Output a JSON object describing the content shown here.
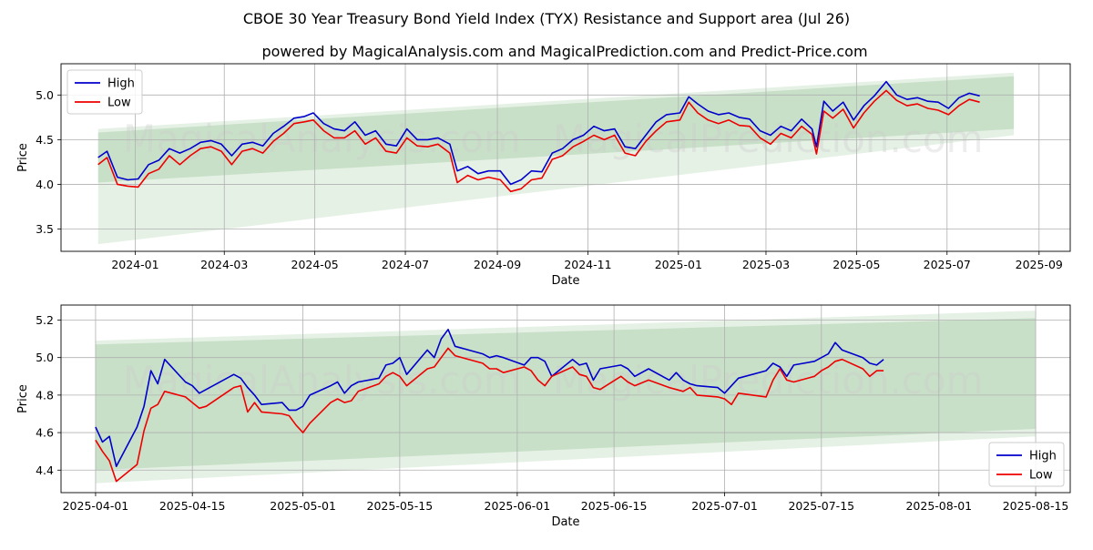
{
  "title": "CBOE 30 Year Treasury Bond Yield Index (TYX) Resistance and Support area (Jul 26)",
  "subtitle": "powered by MagicalAnalysis.com and MagicalPrediction.com and Predict-Price.com",
  "watermarks": [
    "MagicalAnalysis.com",
    "MagicalPrediction.com"
  ],
  "colors": {
    "high": "#0000cc",
    "low": "#ee0000",
    "band": "#2e8b2e"
  },
  "chart_data": [
    {
      "type": "line",
      "xlabel": "Date",
      "ylabel": "Price",
      "xlim": [
        "2023-11-12",
        "2025-09-22"
      ],
      "ylim": [
        3.25,
        5.35
      ],
      "x_ticks": [
        "2024-01-01",
        "2024-03-01",
        "2024-05-01",
        "2024-07-01",
        "2024-09-01",
        "2024-11-01",
        "2025-01-01",
        "2025-03-01",
        "2025-05-01",
        "2025-07-01",
        "2025-09-01"
      ],
      "x_tick_labels": [
        "2024-01",
        "2024-03",
        "2024-05",
        "2024-07",
        "2024-09",
        "2024-11",
        "2025-01",
        "2025-03",
        "2025-05",
        "2025-07",
        "2025-09"
      ],
      "y_ticks": [
        3.5,
        4.0,
        4.5,
        5.0
      ],
      "y_tick_labels": [
        "3.5",
        "4.0",
        "4.5",
        "5.0"
      ],
      "legend": "top-left",
      "grid": true,
      "bands": [
        {
          "x": [
            "2023-12-07",
            "2025-08-15"
          ],
          "upper": [
            4.62,
            5.25
          ],
          "lower": [
            3.33,
            4.55
          ],
          "opacity": 0.12
        },
        {
          "x": [
            "2023-12-07",
            "2025-08-15"
          ],
          "upper": [
            4.58,
            5.21
          ],
          "lower": [
            4.02,
            4.62
          ],
          "opacity": 0.16
        }
      ],
      "series": [
        {
          "name": "High",
          "x": [
            "2023-12-07",
            "2023-12-13",
            "2023-12-20",
            "2023-12-27",
            "2024-01-03",
            "2024-01-10",
            "2024-01-17",
            "2024-01-24",
            "2024-01-31",
            "2024-02-07",
            "2024-02-14",
            "2024-02-21",
            "2024-02-28",
            "2024-03-06",
            "2024-03-13",
            "2024-03-20",
            "2024-03-27",
            "2024-04-03",
            "2024-04-10",
            "2024-04-17",
            "2024-04-24",
            "2024-04-30",
            "2024-05-07",
            "2024-05-14",
            "2024-05-21",
            "2024-05-28",
            "2024-06-04",
            "2024-06-11",
            "2024-06-18",
            "2024-06-25",
            "2024-07-02",
            "2024-07-09",
            "2024-07-16",
            "2024-07-23",
            "2024-07-31",
            "2024-08-05",
            "2024-08-12",
            "2024-08-19",
            "2024-08-26",
            "2024-09-03",
            "2024-09-10",
            "2024-09-17",
            "2024-09-24",
            "2024-10-01",
            "2024-10-08",
            "2024-10-15",
            "2024-10-22",
            "2024-10-29",
            "2024-11-05",
            "2024-11-12",
            "2024-11-19",
            "2024-11-26",
            "2024-12-03",
            "2024-12-10",
            "2024-12-17",
            "2024-12-24",
            "2025-01-02",
            "2025-01-08",
            "2025-01-14",
            "2025-01-21",
            "2025-01-28",
            "2025-02-04",
            "2025-02-11",
            "2025-02-18",
            "2025-02-25",
            "2025-03-04",
            "2025-03-11",
            "2025-03-18",
            "2025-03-25",
            "2025-04-01",
            "2025-04-04",
            "2025-04-09",
            "2025-04-15",
            "2025-04-22",
            "2025-04-29",
            "2025-05-06",
            "2025-05-13",
            "2025-05-21",
            "2025-05-28",
            "2025-06-04",
            "2025-06-11",
            "2025-06-18",
            "2025-06-25",
            "2025-07-02",
            "2025-07-09",
            "2025-07-16",
            "2025-07-23"
          ],
          "values": [
            4.3,
            4.37,
            4.08,
            4.05,
            4.06,
            4.22,
            4.27,
            4.4,
            4.35,
            4.4,
            4.47,
            4.49,
            4.45,
            4.32,
            4.45,
            4.47,
            4.43,
            4.57,
            4.65,
            4.74,
            4.76,
            4.8,
            4.68,
            4.62,
            4.6,
            4.7,
            4.55,
            4.6,
            4.45,
            4.43,
            4.62,
            4.5,
            4.5,
            4.52,
            4.45,
            4.15,
            4.2,
            4.12,
            4.15,
            4.15,
            4.0,
            4.05,
            4.15,
            4.14,
            4.35,
            4.4,
            4.5,
            4.55,
            4.65,
            4.6,
            4.62,
            4.42,
            4.4,
            4.55,
            4.7,
            4.78,
            4.8,
            4.98,
            4.9,
            4.82,
            4.78,
            4.8,
            4.75,
            4.73,
            4.6,
            4.55,
            4.65,
            4.6,
            4.73,
            4.62,
            4.42,
            4.93,
            4.82,
            4.92,
            4.72,
            4.88,
            4.99,
            5.15,
            5.0,
            4.95,
            4.97,
            4.93,
            4.92,
            4.85,
            4.97,
            5.02,
            4.99
          ]
        },
        {
          "name": "Low",
          "x": [
            "2023-12-07",
            "2023-12-13",
            "2023-12-20",
            "2023-12-27",
            "2024-01-03",
            "2024-01-10",
            "2024-01-17",
            "2024-01-24",
            "2024-01-31",
            "2024-02-07",
            "2024-02-14",
            "2024-02-21",
            "2024-02-28",
            "2024-03-06",
            "2024-03-13",
            "2024-03-20",
            "2024-03-27",
            "2024-04-03",
            "2024-04-10",
            "2024-04-17",
            "2024-04-24",
            "2024-04-30",
            "2024-05-07",
            "2024-05-14",
            "2024-05-21",
            "2024-05-28",
            "2024-06-04",
            "2024-06-11",
            "2024-06-18",
            "2024-06-25",
            "2024-07-02",
            "2024-07-09",
            "2024-07-16",
            "2024-07-23",
            "2024-07-31",
            "2024-08-05",
            "2024-08-12",
            "2024-08-19",
            "2024-08-26",
            "2024-09-03",
            "2024-09-10",
            "2024-09-17",
            "2024-09-24",
            "2024-10-01",
            "2024-10-08",
            "2024-10-15",
            "2024-10-22",
            "2024-10-29",
            "2024-11-05",
            "2024-11-12",
            "2024-11-19",
            "2024-11-26",
            "2024-12-03",
            "2024-12-10",
            "2024-12-17",
            "2024-12-24",
            "2025-01-02",
            "2025-01-08",
            "2025-01-14",
            "2025-01-21",
            "2025-01-28",
            "2025-02-04",
            "2025-02-11",
            "2025-02-18",
            "2025-02-25",
            "2025-03-04",
            "2025-03-11",
            "2025-03-18",
            "2025-03-25",
            "2025-04-01",
            "2025-04-04",
            "2025-04-09",
            "2025-04-15",
            "2025-04-22",
            "2025-04-29",
            "2025-05-06",
            "2025-05-13",
            "2025-05-21",
            "2025-05-28",
            "2025-06-04",
            "2025-06-11",
            "2025-06-18",
            "2025-06-25",
            "2025-07-02",
            "2025-07-09",
            "2025-07-16",
            "2025-07-23"
          ],
          "values": [
            4.22,
            4.3,
            4.0,
            3.98,
            3.97,
            4.12,
            4.17,
            4.32,
            4.22,
            4.32,
            4.4,
            4.42,
            4.37,
            4.22,
            4.37,
            4.4,
            4.35,
            4.48,
            4.57,
            4.68,
            4.7,
            4.72,
            4.6,
            4.52,
            4.52,
            4.6,
            4.45,
            4.52,
            4.37,
            4.35,
            4.52,
            4.43,
            4.42,
            4.45,
            4.35,
            4.02,
            4.1,
            4.05,
            4.08,
            4.05,
            3.92,
            3.95,
            4.05,
            4.07,
            4.28,
            4.32,
            4.42,
            4.48,
            4.55,
            4.5,
            4.55,
            4.35,
            4.32,
            4.48,
            4.6,
            4.7,
            4.72,
            4.92,
            4.8,
            4.72,
            4.68,
            4.72,
            4.66,
            4.65,
            4.52,
            4.45,
            4.57,
            4.52,
            4.65,
            4.56,
            4.34,
            4.82,
            4.74,
            4.84,
            4.63,
            4.8,
            4.93,
            5.05,
            4.94,
            4.88,
            4.9,
            4.85,
            4.83,
            4.78,
            4.88,
            4.95,
            4.92
          ]
        }
      ]
    },
    {
      "type": "line",
      "xlabel": "Date",
      "ylabel": "Price",
      "xlim": [
        "2025-03-27",
        "2025-08-20"
      ],
      "ylim": [
        4.28,
        5.28
      ],
      "x_ticks": [
        "2025-04-01",
        "2025-04-15",
        "2025-05-01",
        "2025-05-15",
        "2025-06-01",
        "2025-06-15",
        "2025-07-01",
        "2025-07-15",
        "2025-08-01",
        "2025-08-15"
      ],
      "x_tick_labels": [
        "2025-04-01",
        "2025-04-15",
        "2025-05-01",
        "2025-05-15",
        "2025-06-01",
        "2025-06-15",
        "2025-07-01",
        "2025-07-15",
        "2025-08-01",
        "2025-08-15"
      ],
      "y_ticks": [
        4.4,
        4.6,
        4.8,
        5.0,
        5.2
      ],
      "y_tick_labels": [
        "4.4",
        "4.6",
        "4.8",
        "5.0",
        "5.2"
      ],
      "legend": "bottom-right",
      "grid": true,
      "bands": [
        {
          "x": [
            "2025-04-01",
            "2025-08-15"
          ],
          "upper": [
            5.09,
            5.25
          ],
          "lower": [
            4.33,
            4.58
          ],
          "opacity": 0.12
        },
        {
          "x": [
            "2025-04-01",
            "2025-08-15"
          ],
          "upper": [
            5.07,
            5.21
          ],
          "lower": [
            4.4,
            4.62
          ],
          "opacity": 0.16
        }
      ],
      "series": [
        {
          "name": "High",
          "x": [
            "2025-04-01",
            "2025-04-02",
            "2025-04-03",
            "2025-04-04",
            "2025-04-07",
            "2025-04-08",
            "2025-04-09",
            "2025-04-10",
            "2025-04-11",
            "2025-04-14",
            "2025-04-15",
            "2025-04-16",
            "2025-04-17",
            "2025-04-21",
            "2025-04-22",
            "2025-04-23",
            "2025-04-24",
            "2025-04-25",
            "2025-04-28",
            "2025-04-29",
            "2025-04-30",
            "2025-05-01",
            "2025-05-02",
            "2025-05-05",
            "2025-05-06",
            "2025-05-07",
            "2025-05-08",
            "2025-05-09",
            "2025-05-12",
            "2025-05-13",
            "2025-05-14",
            "2025-05-15",
            "2025-05-16",
            "2025-05-19",
            "2025-05-20",
            "2025-05-21",
            "2025-05-22",
            "2025-05-23",
            "2025-05-27",
            "2025-05-28",
            "2025-05-29",
            "2025-05-30",
            "2025-06-02",
            "2025-06-03",
            "2025-06-04",
            "2025-06-05",
            "2025-06-06",
            "2025-06-09",
            "2025-06-10",
            "2025-06-11",
            "2025-06-12",
            "2025-06-13",
            "2025-06-16",
            "2025-06-17",
            "2025-06-18",
            "2025-06-20",
            "2025-06-23",
            "2025-06-24",
            "2025-06-25",
            "2025-06-26",
            "2025-06-27",
            "2025-06-30",
            "2025-07-01",
            "2025-07-02",
            "2025-07-03",
            "2025-07-07",
            "2025-07-08",
            "2025-07-09",
            "2025-07-10",
            "2025-07-11",
            "2025-07-14",
            "2025-07-15",
            "2025-07-16",
            "2025-07-17",
            "2025-07-18",
            "2025-07-21",
            "2025-07-22",
            "2025-07-23",
            "2025-07-24"
          ],
          "values": [
            4.63,
            4.55,
            4.58,
            4.42,
            4.63,
            4.74,
            4.93,
            4.86,
            4.99,
            4.87,
            4.85,
            4.81,
            4.83,
            4.91,
            4.89,
            4.84,
            4.8,
            4.75,
            4.76,
            4.72,
            4.72,
            4.74,
            4.8,
            4.85,
            4.87,
            4.81,
            4.85,
            4.87,
            4.89,
            4.96,
            4.97,
            5.0,
            4.91,
            5.04,
            5.0,
            5.1,
            5.15,
            5.06,
            5.02,
            5.0,
            5.01,
            5.0,
            4.96,
            5.0,
            5.0,
            4.98,
            4.9,
            4.99,
            4.96,
            4.97,
            4.88,
            4.94,
            4.96,
            4.94,
            4.9,
            4.94,
            4.88,
            4.92,
            4.88,
            4.86,
            4.85,
            4.84,
            4.81,
            4.85,
            4.89,
            4.93,
            4.97,
            4.95,
            4.9,
            4.96,
            4.98,
            5.0,
            5.02,
            5.08,
            5.04,
            5.0,
            4.97,
            4.96,
            4.99
          ]
        },
        {
          "name": "Low",
          "x": [
            "2025-04-01",
            "2025-04-02",
            "2025-04-03",
            "2025-04-04",
            "2025-04-07",
            "2025-04-08",
            "2025-04-09",
            "2025-04-10",
            "2025-04-11",
            "2025-04-14",
            "2025-04-15",
            "2025-04-16",
            "2025-04-17",
            "2025-04-21",
            "2025-04-22",
            "2025-04-23",
            "2025-04-24",
            "2025-04-25",
            "2025-04-28",
            "2025-04-29",
            "2025-04-30",
            "2025-05-01",
            "2025-05-02",
            "2025-05-05",
            "2025-05-06",
            "2025-05-07",
            "2025-05-08",
            "2025-05-09",
            "2025-05-12",
            "2025-05-13",
            "2025-05-14",
            "2025-05-15",
            "2025-05-16",
            "2025-05-19",
            "2025-05-20",
            "2025-05-21",
            "2025-05-22",
            "2025-05-23",
            "2025-05-27",
            "2025-05-28",
            "2025-05-29",
            "2025-05-30",
            "2025-06-02",
            "2025-06-03",
            "2025-06-04",
            "2025-06-05",
            "2025-06-06",
            "2025-06-09",
            "2025-06-10",
            "2025-06-11",
            "2025-06-12",
            "2025-06-13",
            "2025-06-16",
            "2025-06-17",
            "2025-06-18",
            "2025-06-20",
            "2025-06-23",
            "2025-06-24",
            "2025-06-25",
            "2025-06-26",
            "2025-06-27",
            "2025-06-30",
            "2025-07-01",
            "2025-07-02",
            "2025-07-03",
            "2025-07-07",
            "2025-07-08",
            "2025-07-09",
            "2025-07-10",
            "2025-07-11",
            "2025-07-14",
            "2025-07-15",
            "2025-07-16",
            "2025-07-17",
            "2025-07-18",
            "2025-07-21",
            "2025-07-22",
            "2025-07-23",
            "2025-07-24"
          ],
          "values": [
            4.56,
            4.5,
            4.45,
            4.34,
            4.43,
            4.61,
            4.73,
            4.75,
            4.82,
            4.79,
            4.76,
            4.73,
            4.74,
            4.84,
            4.85,
            4.71,
            4.76,
            4.71,
            4.7,
            4.69,
            4.64,
            4.6,
            4.65,
            4.76,
            4.78,
            4.76,
            4.77,
            4.82,
            4.86,
            4.9,
            4.92,
            4.9,
            4.85,
            4.94,
            4.95,
            5.0,
            5.05,
            5.01,
            4.97,
            4.94,
            4.94,
            4.92,
            4.95,
            4.93,
            4.88,
            4.85,
            4.9,
            4.95,
            4.91,
            4.9,
            4.84,
            4.83,
            4.9,
            4.87,
            4.85,
            4.88,
            4.84,
            4.83,
            4.82,
            4.84,
            4.8,
            4.79,
            4.78,
            4.75,
            4.81,
            4.79,
            4.88,
            4.94,
            4.88,
            4.87,
            4.9,
            4.93,
            4.95,
            4.98,
            4.99,
            4.94,
            4.9,
            4.93,
            4.93
          ]
        }
      ]
    }
  ]
}
